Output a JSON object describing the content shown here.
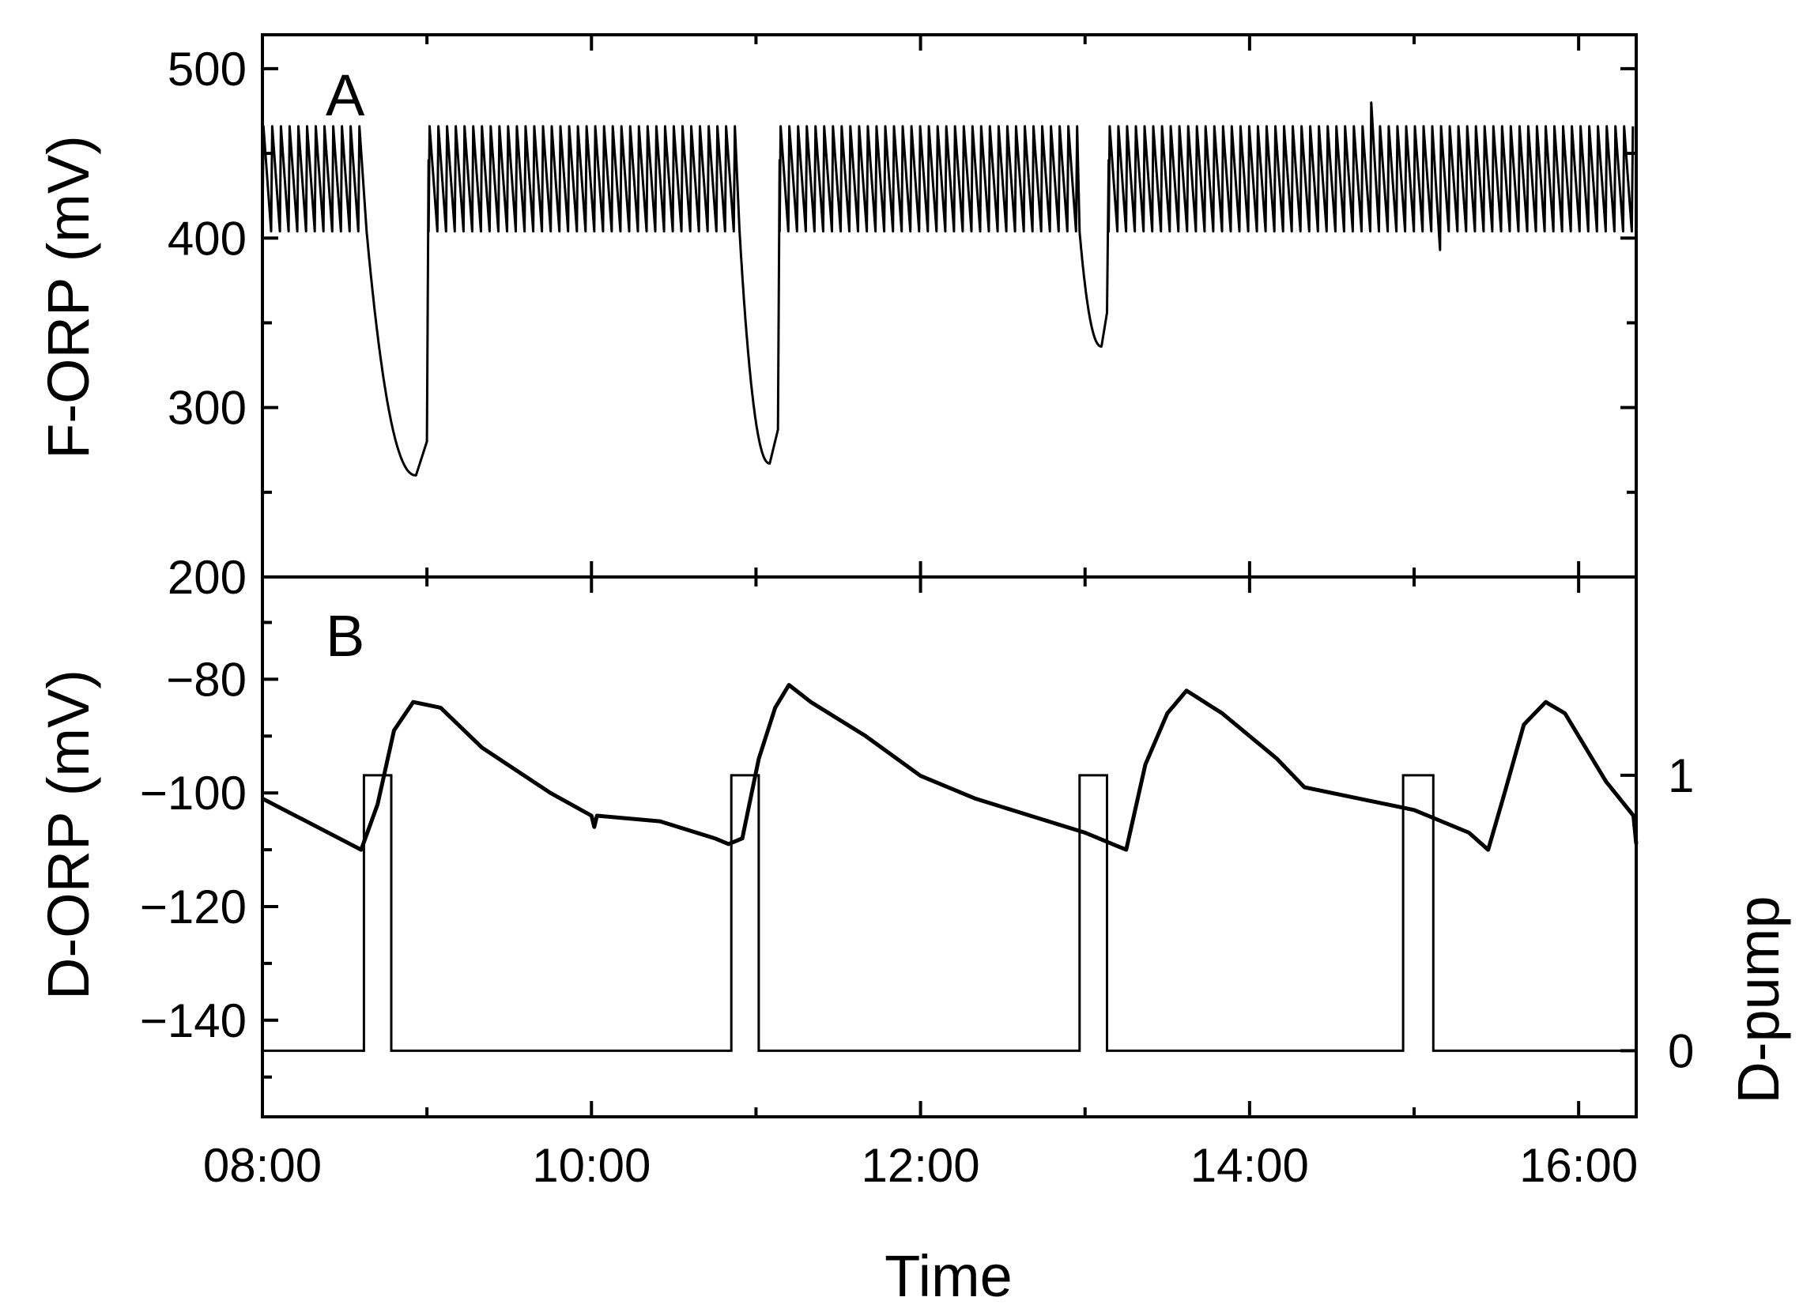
{
  "chart_data": [
    {
      "type": "line",
      "panel_label": "A",
      "ylabel": "F-ORP (mV)",
      "xlabel": "",
      "xlim_hours": [
        8.0,
        16.35
      ],
      "ylim": [
        200,
        520
      ],
      "yticks": [
        200,
        300,
        400,
        500
      ],
      "ytick_labels": [
        "200",
        "300",
        "400",
        "500"
      ],
      "grid": false,
      "series": [
        {
          "oscillation": {
            "low": 404,
            "high": 466,
            "period_hours": 0.053
          },
          "dips": [
            {
              "start": "08:38",
              "min_time": "08:56",
              "min_value": 260,
              "end": "09:00"
            },
            {
              "start": "10:54",
              "min_time": "11:05",
              "min_value": 267,
              "end": "11:08"
            },
            {
              "start": "12:58",
              "min_time": "13:06",
              "min_value": 336,
              "end": "13:08"
            }
          ],
          "notable_points": [
            {
              "time": "14:43",
              "value": 480
            },
            {
              "time": "15:08",
              "value": 393
            }
          ]
        }
      ]
    },
    {
      "type": "line",
      "panel_label": "B",
      "ylabel": "D-ORP (mV)",
      "y2label": "D-pump",
      "xlabel": "Time",
      "xlim_hours": [
        8.0,
        16.35
      ],
      "ylim": [
        -157,
        -62
      ],
      "yticks": [
        -140,
        -120,
        -100,
        -80
      ],
      "ytick_labels": [
        "−140",
        "−120",
        "−100",
        "−80"
      ],
      "y2lim": [
        -0.24,
        1.72
      ],
      "y2ticks": [
        0,
        1
      ],
      "y2tick_labels": [
        "0",
        "1"
      ],
      "xticks": [
        "08:00",
        "10:00",
        "12:00",
        "14:00",
        "16:00"
      ],
      "grid": false,
      "series": [
        {
          "axis": "left",
          "points": [
            [
              "08:00",
              -101
            ],
            [
              "08:20",
              -106
            ],
            [
              "08:36",
              -110
            ],
            [
              "08:42",
              -102
            ],
            [
              "08:48",
              -89
            ],
            [
              "08:55",
              -84
            ],
            [
              "09:05",
              -85
            ],
            [
              "09:20",
              -92
            ],
            [
              "09:45",
              -100
            ],
            [
              "10:00",
              -104
            ],
            [
              "10:01",
              -106
            ],
            [
              "10:02",
              -104
            ],
            [
              "10:25",
              -105
            ],
            [
              "10:45",
              -108
            ],
            [
              "10:50",
              -109
            ],
            [
              "10:55",
              -108
            ],
            [
              "11:01",
              -94
            ],
            [
              "11:07",
              -85
            ],
            [
              "11:12",
              -81
            ],
            [
              "11:20",
              -84
            ],
            [
              "11:40",
              -90
            ],
            [
              "12:00",
              -97
            ],
            [
              "12:20",
              -101
            ],
            [
              "12:40",
              -104
            ],
            [
              "13:00",
              -107
            ],
            [
              "13:10",
              -109
            ],
            [
              "13:15",
              -110
            ],
            [
              "13:22",
              -95
            ],
            [
              "13:30",
              -86
            ],
            [
              "13:37",
              -82
            ],
            [
              "13:50",
              -86
            ],
            [
              "14:10",
              -94
            ],
            [
              "14:20",
              -99
            ],
            [
              "14:40",
              -101
            ],
            [
              "15:00",
              -103
            ],
            [
              "15:20",
              -107
            ],
            [
              "15:27",
              -110
            ],
            [
              "15:33",
              -100
            ],
            [
              "15:40",
              -88
            ],
            [
              "15:48",
              -84
            ],
            [
              "15:55",
              -86
            ],
            [
              "16:10",
              -98
            ],
            [
              "16:20",
              -104
            ],
            [
              "16:21",
              -109
            ]
          ]
        },
        {
          "axis": "right",
          "pulses": [
            {
              "on": "08:37",
              "off": "08:47"
            },
            {
              "on": "10:51",
              "off": "11:01"
            },
            {
              "on": "12:58",
              "off": "13:08"
            },
            {
              "on": "14:56",
              "off": "15:07"
            }
          ],
          "low": 0,
          "high": 1
        }
      ]
    }
  ]
}
